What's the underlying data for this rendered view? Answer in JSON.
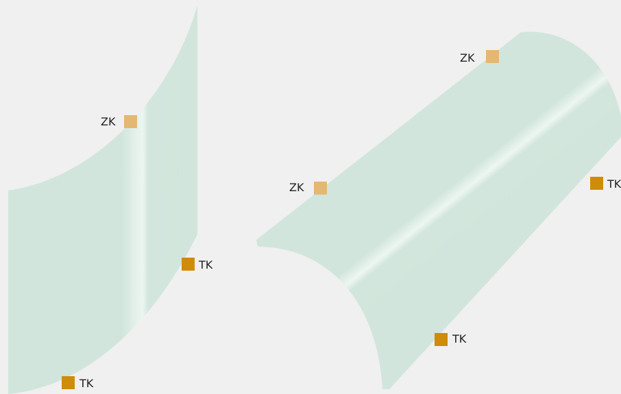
{
  "diagram": {
    "colors": {
      "background": "#f0f0f0",
      "surface": "#d1e5dc",
      "highlight": "#eef7f2",
      "zk_marker": "#e4b872",
      "tk_marker": "#cf8b0a"
    },
    "markers": {
      "zk_label": "ZK",
      "tk_label": "TK"
    },
    "figure_left": {
      "zk": [
        {
          "label": "ZK"
        }
      ],
      "tk": [
        {
          "label": "TK"
        },
        {
          "label": "TK"
        }
      ]
    },
    "figure_right": {
      "zk": [
        {
          "label": "ZK"
        },
        {
          "label": "ZK"
        }
      ],
      "tk": [
        {
          "label": "TK"
        },
        {
          "label": "TK"
        }
      ]
    }
  }
}
